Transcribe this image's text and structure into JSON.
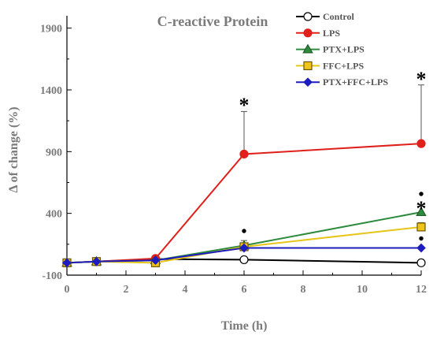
{
  "chart_data": {
    "type": "line",
    "title": "C-reactive Protein",
    "xlabel": "Time (h)",
    "ylabel": "Δ of change (%)",
    "xlim": [
      0,
      12
    ],
    "ylim": [
      -100,
      2000
    ],
    "x_ticks": [
      0,
      2,
      4,
      6,
      8,
      10,
      12
    ],
    "x_tick_labels": [
      "0",
      "2",
      "4",
      "6",
      "8",
      "10",
      "12"
    ],
    "y_ticks": [
      -100,
      400,
      900,
      1400,
      1900
    ],
    "y_tick_labels": [
      "-100",
      "400",
      "900",
      "1400",
      "1900"
    ],
    "grid": false,
    "legend_position": "top-right",
    "x": [
      0,
      1,
      3,
      6,
      12
    ],
    "series": [
      {
        "name": "Control",
        "color": "#000000",
        "marker": "circle",
        "marker_fill": "#ffffff",
        "values": [
          0,
          10,
          30,
          25,
          0
        ],
        "error": [
          0,
          0,
          0,
          0,
          0
        ]
      },
      {
        "name": "LPS",
        "color": "#e0201b",
        "marker": "circle",
        "marker_fill": "#e0201b",
        "values": [
          0,
          10,
          35,
          880,
          965
        ],
        "error": [
          0,
          0,
          0,
          345,
          475
        ]
      },
      {
        "name": "PTX+LPS",
        "color": "#2e8b3d",
        "marker": "triangle",
        "marker_fill": "#2e8b3d",
        "values": [
          0,
          10,
          20,
          140,
          410
        ],
        "error": [
          0,
          0,
          0,
          40,
          0
        ]
      },
      {
        "name": "FFC+LPS",
        "color": "#e6c619",
        "marker": "square",
        "marker_fill": "#f0c419",
        "values": [
          0,
          10,
          0,
          130,
          290
        ],
        "error": [
          0,
          0,
          0,
          20,
          35
        ]
      },
      {
        "name": "PTX+FFC+LPS",
        "color": "#1d1dbf",
        "marker": "diamond",
        "marker_fill": "#1d1dbf",
        "values": [
          0,
          10,
          20,
          120,
          120
        ],
        "error": [
          0,
          0,
          0,
          0,
          0
        ]
      }
    ],
    "annotations": [
      {
        "text": "*",
        "x": 6,
        "y": 1310,
        "kind": "star"
      },
      {
        "text": "*",
        "x": 12,
        "y": 1520,
        "kind": "star"
      },
      {
        "text": "*",
        "x": 12,
        "y": 475,
        "kind": "star"
      },
      {
        "text": "•",
        "x": 6,
        "y": 250,
        "kind": "dot"
      },
      {
        "text": "•",
        "x": 12,
        "y": 550,
        "kind": "dot"
      },
      {
        "text": "•",
        "x": 12,
        "y": 190,
        "kind": "dot"
      }
    ]
  }
}
